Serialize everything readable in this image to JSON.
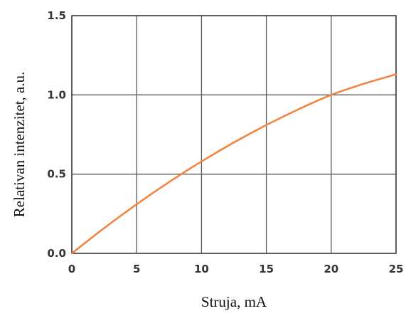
{
  "chart_data": {
    "type": "line",
    "title": "",
    "xlabel": "Struja, mA",
    "ylabel": "Relativan intenzitet, a.u.",
    "xlim": [
      0,
      25
    ],
    "ylim": [
      0,
      1.5
    ],
    "x_ticks": [
      0,
      5,
      10,
      15,
      20,
      25
    ],
    "x_tick_labels": [
      "0",
      "5",
      "10",
      "15",
      "20",
      "25"
    ],
    "y_ticks": [
      0,
      0.5,
      1.0,
      1.5
    ],
    "y_tick_labels": [
      "0.0",
      "0.5",
      "1.0",
      "1.5"
    ],
    "grid": true,
    "series": [
      {
        "color": "#f5813a",
        "x": [
          0,
          2.5,
          5,
          7.5,
          10,
          12.5,
          15,
          17.5,
          20,
          22.5,
          25
        ],
        "y": [
          0,
          0.16,
          0.31,
          0.45,
          0.58,
          0.7,
          0.81,
          0.91,
          1.0,
          1.07,
          1.13
        ]
      }
    ]
  }
}
